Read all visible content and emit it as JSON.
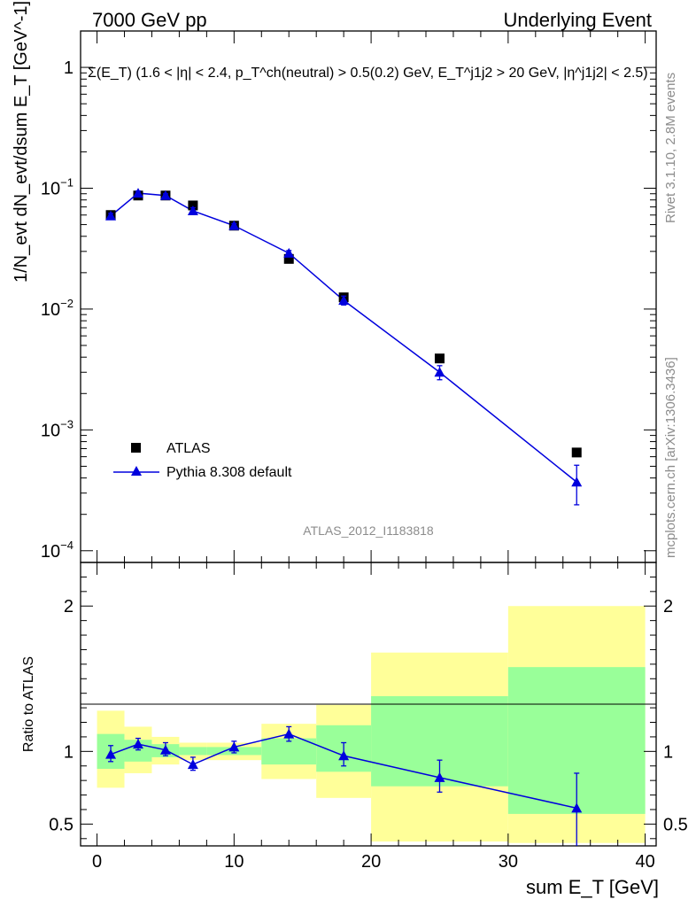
{
  "header": {
    "left": "7000 GeV pp",
    "right": "Underlying Event"
  },
  "side": {
    "rivet": "Rivet 3.1.10,  2.8M events",
    "mcplots": "mcplots.cern.ch [arXiv:1306.3436]"
  },
  "colors": {
    "mc": "#0000dd",
    "band_inner": "#99ff99",
    "band_outer": "#ffff99",
    "data": "#000000"
  },
  "chart_data": [
    {
      "type": "scatter",
      "title": "Σ(E_T) (1.6 < |η| < 2.4, p_T^ch(neutral) > 0.5(0.2) GeV, E_T^j1j2 > 20 GeV, |η^j1j2| < 2.5)",
      "ylabel": "1/N_evt dN_evt/dsum E_T [GeV^-1]",
      "analysis_label": "ATLAS_2012_I1183818",
      "yscale": "log",
      "xlim": [
        -1.2,
        40.8
      ],
      "ylim": [
        8e-05,
        2.0
      ],
      "y_ticks": [
        {
          "label": "10^-4",
          "value": 0.0001
        },
        {
          "label": "10^-3",
          "value": 0.001
        },
        {
          "label": "10^-2",
          "value": 0.01
        },
        {
          "label": "10^-1",
          "value": 0.1
        },
        {
          "label": "1",
          "value": 1
        }
      ],
      "legend": {
        "placement": "bottom-left",
        "data_label": "ATLAS",
        "mc_label": "Pythia 8.308 default"
      },
      "series": [
        {
          "name": "ATLAS",
          "x": [
            1,
            3,
            5,
            7,
            10,
            14,
            18,
            25,
            35
          ],
          "y": [
            0.06,
            0.087,
            0.087,
            0.072,
            0.049,
            0.026,
            0.0125,
            0.0039,
            0.00065
          ]
        },
        {
          "name": "Pythia 8.308 default",
          "x": [
            1,
            3,
            5,
            7,
            10,
            14,
            18,
            25,
            35
          ],
          "y": [
            0.059,
            0.091,
            0.087,
            0.065,
            0.049,
            0.029,
            0.0118,
            0.003,
            0.00037
          ],
          "y_err_low": [
            0.056,
            0.087,
            0.084,
            0.061,
            0.047,
            0.0275,
            0.0108,
            0.0026,
            0.00024
          ],
          "y_err_high": [
            0.062,
            0.095,
            0.09,
            0.069,
            0.051,
            0.0305,
            0.0128,
            0.0034,
            0.00051
          ]
        }
      ]
    },
    {
      "type": "scatter",
      "xlabel": "sum E_T [GeV]",
      "ylabel": "Ratio to ATLAS",
      "xlim": [
        -1.2,
        40.8
      ],
      "ylim": [
        0.35,
        2.3
      ],
      "x_ticks": [
        "0",
        "10",
        "20",
        "30",
        "40"
      ],
      "y_ticks": [
        "0.5",
        "1",
        "2"
      ],
      "bands": {
        "edges": [
          0,
          2,
          4,
          6,
          8,
          12,
          16,
          20,
          30,
          40
        ],
        "inner_low": [
          0.88,
          0.93,
          0.96,
          0.975,
          0.975,
          0.91,
          0.86,
          0.76,
          0.57
        ],
        "inner_high": [
          1.12,
          1.08,
          1.05,
          1.03,
          1.03,
          1.09,
          1.18,
          1.38,
          1.58
        ],
        "outer_low": [
          0.75,
          0.85,
          0.91,
          0.94,
          0.94,
          0.81,
          0.68,
          0.38,
          0.37
        ],
        "outer_high": [
          1.28,
          1.17,
          1.1,
          1.06,
          1.06,
          1.19,
          1.32,
          1.68,
          2.0
        ]
      },
      "series": [
        {
          "name": "Pythia 8.308 default",
          "x": [
            1,
            3,
            5,
            7,
            10,
            14,
            18,
            25,
            35
          ],
          "y": [
            0.98,
            1.05,
            1.01,
            0.91,
            1.03,
            1.12,
            0.97,
            0.82,
            0.61
          ],
          "y_err_low": [
            0.93,
            1.01,
            0.97,
            0.87,
            0.99,
            1.07,
            0.9,
            0.72,
            0.3
          ],
          "y_err_high": [
            1.04,
            1.09,
            1.06,
            0.96,
            1.07,
            1.17,
            1.06,
            0.94,
            0.85
          ]
        }
      ]
    }
  ]
}
